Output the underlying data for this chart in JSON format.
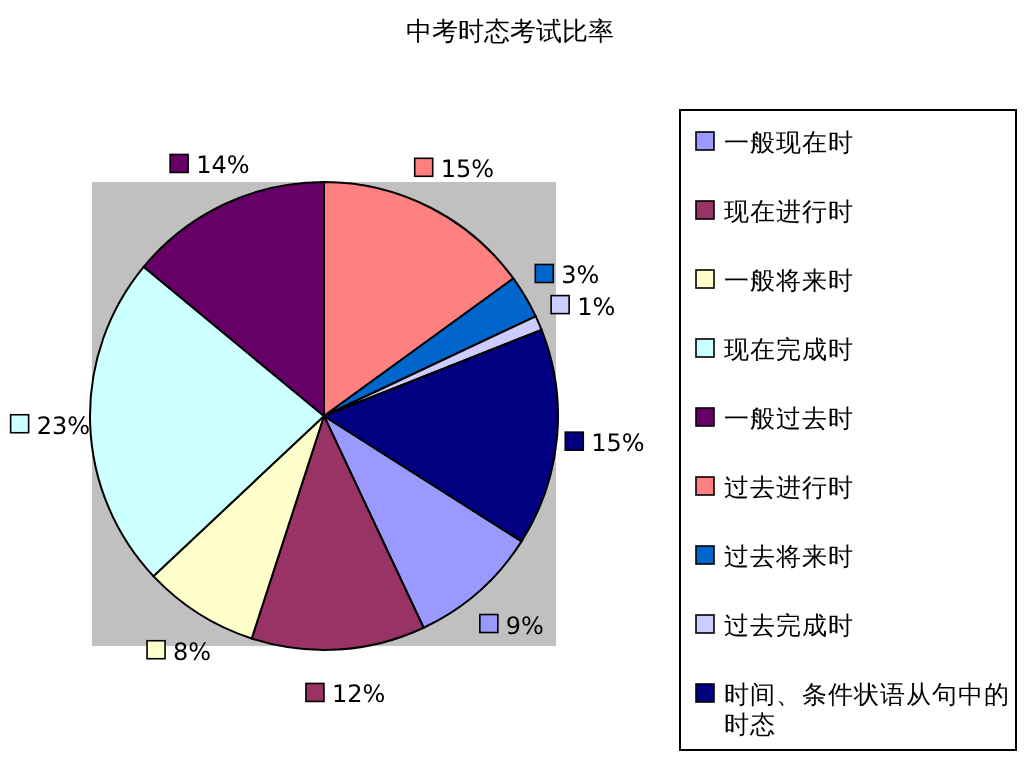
{
  "chart_data": {
    "type": "pie",
    "title": "中考时态考试比率",
    "categories": [
      "一般现在时",
      "现在进行时",
      "一般将来时",
      "现在完成时",
      "一般过去时",
      "过去进行时",
      "过去将来时",
      "过去完成时",
      "时间、条件状语从句中的时态"
    ],
    "values": [
      9,
      12,
      8,
      23,
      14,
      15,
      3,
      1,
      15
    ],
    "value_labels": [
      "9%",
      "12%",
      "8%",
      "23%",
      "14%",
      "15%",
      "3%",
      "1%",
      "15%"
    ],
    "colors": [
      "#9999ff",
      "#993366",
      "#ffffcc",
      "#ccffff",
      "#660066",
      "#ff8080",
      "#0066cc",
      "#ccccff",
      "#000080"
    ],
    "legend": "right"
  }
}
